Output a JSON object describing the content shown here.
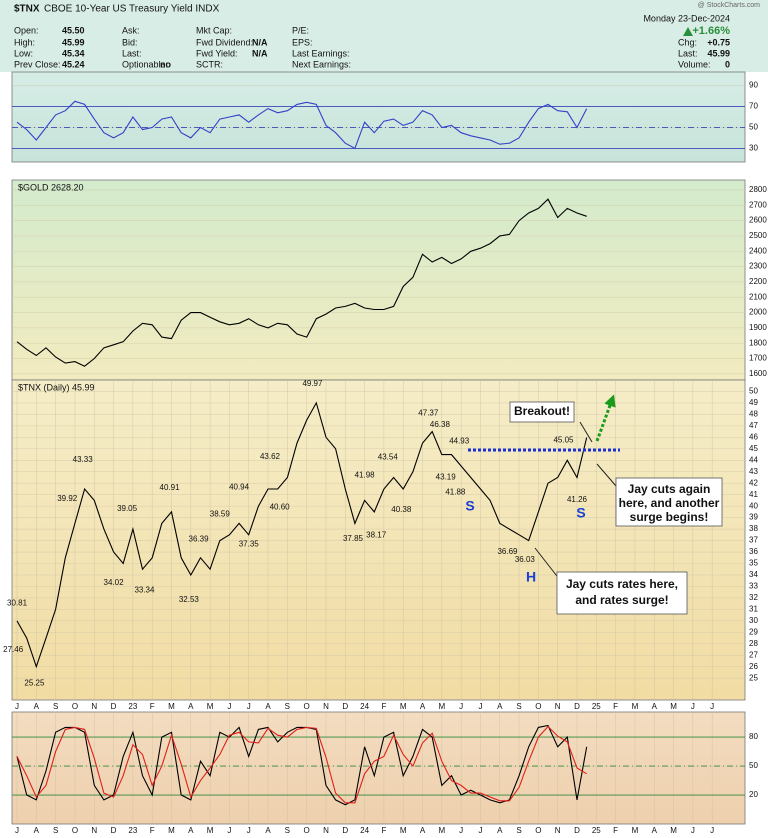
{
  "header": {
    "symbol": "$TNX",
    "name": "CBOE 10-Year US Treasury Yield INDX",
    "date": "Monday 23-Dec-2024",
    "watermark": "@ StockCharts.com",
    "change_pct": "+1.66%",
    "columns": [
      [
        [
          "Open:",
          "45.50"
        ],
        [
          "High:",
          "45.99"
        ],
        [
          "Low:",
          "45.34"
        ],
        [
          "Prev Close:",
          "45.24"
        ]
      ],
      [
        [
          "Ask:"
        ],
        [
          "Bid:"
        ],
        [
          "Last:"
        ],
        [
          "Optionable:",
          "no"
        ]
      ],
      [
        [
          "Mkt Cap:"
        ],
        [
          "Fwd Dividend:",
          "N/A"
        ],
        [
          "Fwd Yield:",
          "N/A"
        ],
        [
          "SCTR:"
        ]
      ],
      [
        [
          "P/E:"
        ],
        [
          "EPS:"
        ],
        [
          "Last Earnings:"
        ],
        [
          "Next Earnings:"
        ]
      ],
      [
        [
          "Chg:",
          "+0.75"
        ],
        [
          "Last:",
          "45.99"
        ],
        [
          "Volume:",
          "0"
        ]
      ]
    ]
  },
  "chart_data": [
    {
      "type": "line",
      "ylim": [
        17,
        103
      ],
      "yticks": [
        30,
        50,
        70,
        90
      ],
      "levels": [
        70,
        50,
        30
      ],
      "xlim": [
        -0.26,
        37.7
      ],
      "x": [
        0,
        0.5,
        1,
        1.5,
        2,
        2.5,
        3,
        3.5,
        4,
        4.5,
        5,
        5.5,
        6,
        6.5,
        7,
        7.5,
        8,
        8.5,
        9,
        9.5,
        10,
        10.5,
        11,
        11.5,
        12,
        12.5,
        13,
        13.5,
        14,
        14.5,
        15,
        15.5,
        16,
        16.5,
        17,
        17.5,
        18,
        18.5,
        19,
        19.5,
        20,
        20.5,
        21,
        21.5,
        22,
        22.5,
        23,
        23.5,
        24,
        24.5,
        25,
        25.5,
        26,
        26.5,
        27,
        27.5,
        28,
        28.5,
        29,
        29.5
      ],
      "series": [
        {
          "color": "#3341c8",
          "values": [
            55,
            48,
            38,
            50,
            62,
            66,
            75,
            72,
            58,
            45,
            40,
            45,
            60,
            48,
            50,
            58,
            60,
            45,
            40,
            50,
            45,
            58,
            60,
            62,
            55,
            62,
            68,
            64,
            66,
            72,
            74,
            72,
            52,
            45,
            35,
            30,
            55,
            45,
            56,
            58,
            52,
            55,
            66,
            62,
            50,
            52,
            45,
            42,
            40,
            38,
            34,
            35,
            40,
            55,
            68,
            72,
            66,
            65,
            50,
            68
          ]
        }
      ]
    },
    {
      "type": "line",
      "label": "$GOLD 2628.20",
      "ylim": [
        1560,
        2865
      ],
      "yticks": [
        1600,
        1700,
        1800,
        1900,
        2000,
        2100,
        2200,
        2300,
        2400,
        2500,
        2600,
        2700,
        2800
      ],
      "xlim": [
        -0.26,
        37.7
      ],
      "x": [
        0,
        0.5,
        1,
        1.5,
        2,
        2.5,
        3,
        3.5,
        4,
        4.5,
        5,
        5.5,
        6,
        6.5,
        7,
        7.5,
        8,
        8.5,
        9,
        9.5,
        10,
        10.5,
        11,
        11.5,
        12,
        12.5,
        13,
        13.5,
        14,
        14.5,
        15,
        15.5,
        16,
        16.5,
        17,
        17.5,
        18,
        18.5,
        19,
        19.5,
        20,
        20.5,
        21,
        21.5,
        22,
        22.5,
        23,
        23.5,
        24,
        24.5,
        25,
        25.5,
        26,
        26.5,
        27,
        27.5,
        28,
        28.5,
        29,
        29.5
      ],
      "series": [
        {
          "color": "#000000",
          "values": [
            1810,
            1760,
            1720,
            1770,
            1710,
            1670,
            1680,
            1650,
            1700,
            1770,
            1790,
            1810,
            1880,
            1930,
            1920,
            1840,
            1830,
            1950,
            2000,
            2000,
            1970,
            1940,
            1920,
            1930,
            1960,
            1920,
            1900,
            1930,
            1920,
            1860,
            1840,
            1960,
            1990,
            2030,
            2040,
            2060,
            2030,
            2020,
            2020,
            2040,
            2170,
            2230,
            2380,
            2330,
            2360,
            2320,
            2350,
            2400,
            2420,
            2450,
            2500,
            2510,
            2600,
            2650,
            2680,
            2740,
            2620,
            2680,
            2650,
            2628
          ]
        }
      ]
    },
    {
      "type": "line",
      "label": "$TNX (Daily) 45.99",
      "ylim": [
        23.1,
        51.0
      ],
      "yticks": [
        25,
        26,
        27,
        28,
        29,
        30,
        31,
        32,
        33,
        34,
        35,
        36,
        37,
        38,
        39,
        40,
        41,
        42,
        43,
        44,
        45,
        46,
        47,
        48,
        49,
        50
      ],
      "xlim": [
        -0.26,
        37.7
      ],
      "xticks": [
        {
          "value": 0,
          "label": "J"
        },
        {
          "value": 1,
          "label": "A"
        },
        {
          "value": 2,
          "label": "S"
        },
        {
          "value": 3,
          "label": "O"
        },
        {
          "value": 4,
          "label": "N"
        },
        {
          "value": 5,
          "label": "D"
        },
        {
          "value": 6,
          "label": "23"
        },
        {
          "value": 7,
          "label": "F"
        },
        {
          "value": 8,
          "label": "M"
        },
        {
          "value": 9,
          "label": "A"
        },
        {
          "value": 10,
          "label": "M"
        },
        {
          "value": 11,
          "label": "J"
        },
        {
          "value": 12,
          "label": "J"
        },
        {
          "value": 13,
          "label": "A"
        },
        {
          "value": 14,
          "label": "S"
        },
        {
          "value": 15,
          "label": "O"
        },
        {
          "value": 16,
          "label": "N"
        },
        {
          "value": 17,
          "label": "D"
        },
        {
          "value": 18,
          "label": "24"
        },
        {
          "value": 19,
          "label": "F"
        },
        {
          "value": 20,
          "label": "M"
        },
        {
          "value": 21,
          "label": "A"
        },
        {
          "value": 22,
          "label": "M"
        },
        {
          "value": 23,
          "label": "J"
        },
        {
          "value": 24,
          "label": "J"
        },
        {
          "value": 25,
          "label": "A"
        },
        {
          "value": 26,
          "label": "S"
        },
        {
          "value": 27,
          "label": "O"
        },
        {
          "value": 28,
          "label": "N"
        },
        {
          "value": 29,
          "label": "D"
        },
        {
          "value": 30,
          "label": "25"
        },
        {
          "value": 31,
          "label": "F"
        },
        {
          "value": 32,
          "label": "M"
        },
        {
          "value": 33,
          "label": "A"
        },
        {
          "value": 34,
          "label": "M"
        },
        {
          "value": 35,
          "label": "J"
        },
        {
          "value": 36,
          "label": "J"
        }
      ],
      "x": [
        0,
        0.5,
        1,
        1.5,
        2,
        2.5,
        3,
        3.5,
        4,
        4.5,
        5,
        5.5,
        6,
        6.5,
        7,
        7.5,
        8,
        8.5,
        9,
        9.5,
        10,
        10.5,
        11,
        11.5,
        12,
        12.5,
        13,
        13.5,
        14,
        14.5,
        15,
        15.5,
        16,
        16.5,
        17,
        17.5,
        18,
        18.5,
        19,
        19.5,
        20,
        20.5,
        21,
        21.5,
        22,
        22.5,
        23,
        23.5,
        24,
        24.5,
        25,
        25.5,
        26,
        26.5,
        27,
        27.5,
        28,
        28.5,
        29,
        29.5
      ],
      "series": [
        {
          "color": "#000000",
          "values": [
            30.0,
            28.5,
            26.0,
            28.5,
            31.0,
            35.5,
            38.5,
            41.5,
            40.5,
            38.0,
            36.0,
            35.0,
            38.0,
            34.5,
            35.5,
            38.5,
            39.5,
            35.5,
            34.0,
            35.5,
            34.5,
            37.0,
            37.5,
            38.5,
            37.5,
            40.0,
            41.5,
            41.5,
            42.5,
            45.5,
            47.5,
            49.0,
            46.0,
            45.0,
            41.5,
            38.5,
            40.5,
            39.5,
            41.5,
            42.5,
            41.5,
            43.0,
            45.5,
            46.5,
            44.5,
            44.5,
            43.5,
            42.5,
            41.5,
            40.5,
            38.5,
            38.0,
            37.5,
            37.0,
            39.5,
            42.0,
            42.5,
            44.0,
            42.5,
            45.99
          ]
        }
      ],
      "peak_labels": {
        "x": [
          0.0,
          -0.2,
          0.9,
          2.6,
          3.4,
          5.0,
          5.7,
          6.6,
          7.9,
          8.9,
          9.4,
          10.5,
          11.5,
          12.0,
          13.1,
          13.6,
          15.3,
          17.4,
          18.0,
          18.6,
          19.2,
          19.9,
          21.3,
          21.9,
          22.2,
          22.9,
          22.7,
          25.4,
          26.3,
          28.3,
          29.0
        ],
        "values": [
          30.81,
          27.46,
          25.25,
          39.92,
          43.33,
          34.02,
          39.05,
          33.34,
          40.91,
          32.53,
          36.39,
          38.59,
          40.94,
          37.35,
          43.62,
          40.6,
          49.97,
          37.85,
          41.98,
          38.17,
          43.54,
          40.38,
          47.37,
          46.38,
          43.19,
          44.93,
          41.88,
          36.69,
          36.03,
          45.05,
          41.26
        ],
        "value_labels": [
          "30.81",
          "27.46",
          "25.25",
          "39.92",
          "43.33",
          "34.02",
          "39.05",
          "33.34",
          "40.91",
          "32.53",
          "36.39",
          "38.59",
          "40.94",
          "37.35",
          "43.62",
          "40.60",
          "49.97",
          "37.85",
          "41.98",
          "38.17",
          "43.54",
          "40.38",
          "47.37",
          "46.38",
          "43.19",
          "44.93",
          "41.88",
          "36.69",
          "36.03",
          "45.05",
          "41.26"
        ]
      },
      "resistance_level": 44.9,
      "annotations": [
        [
          "Breakout!"
        ],
        [
          "Jay cuts again",
          "here, and another",
          "surge begins!"
        ],
        [
          "Jay cuts rates here,",
          "and rates surge!"
        ],
        [
          "S"
        ],
        [
          "H"
        ],
        [
          "S"
        ]
      ]
    },
    {
      "type": "line",
      "ylim": [
        -10,
        106
      ],
      "yticks": [
        20,
        50,
        80
      ],
      "levels": [
        80,
        50,
        20
      ],
      "xlim": [
        -0.26,
        37.7
      ],
      "xticks": [
        {
          "value": 0,
          "label": "J"
        },
        {
          "value": 1,
          "label": "A"
        },
        {
          "value": 2,
          "label": "S"
        },
        {
          "value": 3,
          "label": "O"
        },
        {
          "value": 4,
          "label": "N"
        },
        {
          "value": 5,
          "label": "D"
        },
        {
          "value": 6,
          "label": "23"
        },
        {
          "value": 7,
          "label": "F"
        },
        {
          "value": 8,
          "label": "M"
        },
        {
          "value": 9,
          "label": "A"
        },
        {
          "value": 10,
          "label": "M"
        },
        {
          "value": 11,
          "label": "J"
        },
        {
          "value": 12,
          "label": "J"
        },
        {
          "value": 13,
          "label": "A"
        },
        {
          "value": 14,
          "label": "S"
        },
        {
          "value": 15,
          "label": "O"
        },
        {
          "value": 16,
          "label": "N"
        },
        {
          "value": 17,
          "label": "D"
        },
        {
          "value": 18,
          "label": "24"
        },
        {
          "value": 19,
          "label": "F"
        },
        {
          "value": 20,
          "label": "M"
        },
        {
          "value": 21,
          "label": "A"
        },
        {
          "value": 22,
          "label": "M"
        },
        {
          "value": 23,
          "label": "J"
        },
        {
          "value": 24,
          "label": "J"
        },
        {
          "value": 25,
          "label": "A"
        },
        {
          "value": 26,
          "label": "S"
        },
        {
          "value": 27,
          "label": "O"
        },
        {
          "value": 28,
          "label": "N"
        },
        {
          "value": 29,
          "label": "D"
        },
        {
          "value": 30,
          "label": "25"
        },
        {
          "value": 31,
          "label": "F"
        },
        {
          "value": 32,
          "label": "M"
        },
        {
          "value": 33,
          "label": "A"
        },
        {
          "value": 34,
          "label": "M"
        },
        {
          "value": 35,
          "label": "J"
        },
        {
          "value": 36,
          "label": "J"
        }
      ],
      "x": [
        0,
        0.5,
        1,
        1.5,
        2,
        2.5,
        3,
        3.5,
        4,
        4.5,
        5,
        5.5,
        6,
        6.5,
        7,
        7.5,
        8,
        8.5,
        9,
        9.5,
        10,
        10.5,
        11,
        11.5,
        12,
        12.5,
        13,
        13.5,
        14,
        14.5,
        15,
        15.5,
        16,
        16.5,
        17,
        17.5,
        18,
        18.5,
        19,
        19.5,
        20,
        20.5,
        21,
        21.5,
        22,
        22.5,
        23,
        23.5,
        24,
        24.5,
        25,
        25.5,
        26,
        26.5,
        27,
        27.5,
        28,
        28.5,
        29,
        29.5
      ],
      "series": [
        {
          "color": "#000000",
          "values": [
            60,
            20,
            15,
            45,
            85,
            90,
            90,
            85,
            30,
            15,
            20,
            60,
            85,
            40,
            20,
            80,
            85,
            20,
            15,
            55,
            40,
            85,
            80,
            90,
            60,
            88,
            90,
            75,
            85,
            90,
            90,
            88,
            30,
            15,
            10,
            15,
            70,
            40,
            80,
            85,
            40,
            60,
            88,
            80,
            30,
            40,
            20,
            25,
            20,
            15,
            12,
            15,
            40,
            70,
            90,
            92,
            70,
            80,
            15,
            70
          ]
        },
        {
          "color": "#e0201a",
          "values": [
            60,
            40,
            18,
            30,
            65,
            88,
            90,
            88,
            58,
            22,
            18,
            40,
            72,
            62,
            30,
            50,
            82,
            52,
            18,
            35,
            48,
            62,
            82,
            85,
            75,
            74,
            89,
            82,
            80,
            88,
            90,
            89,
            59,
            22,
            12,
            12,
            42,
            55,
            60,
            82,
            62,
            50,
            74,
            84,
            55,
            35,
            30,
            22,
            22,
            18,
            14,
            14,
            28,
            55,
            80,
            91,
            81,
            75,
            48,
            42
          ]
        }
      ]
    }
  ]
}
